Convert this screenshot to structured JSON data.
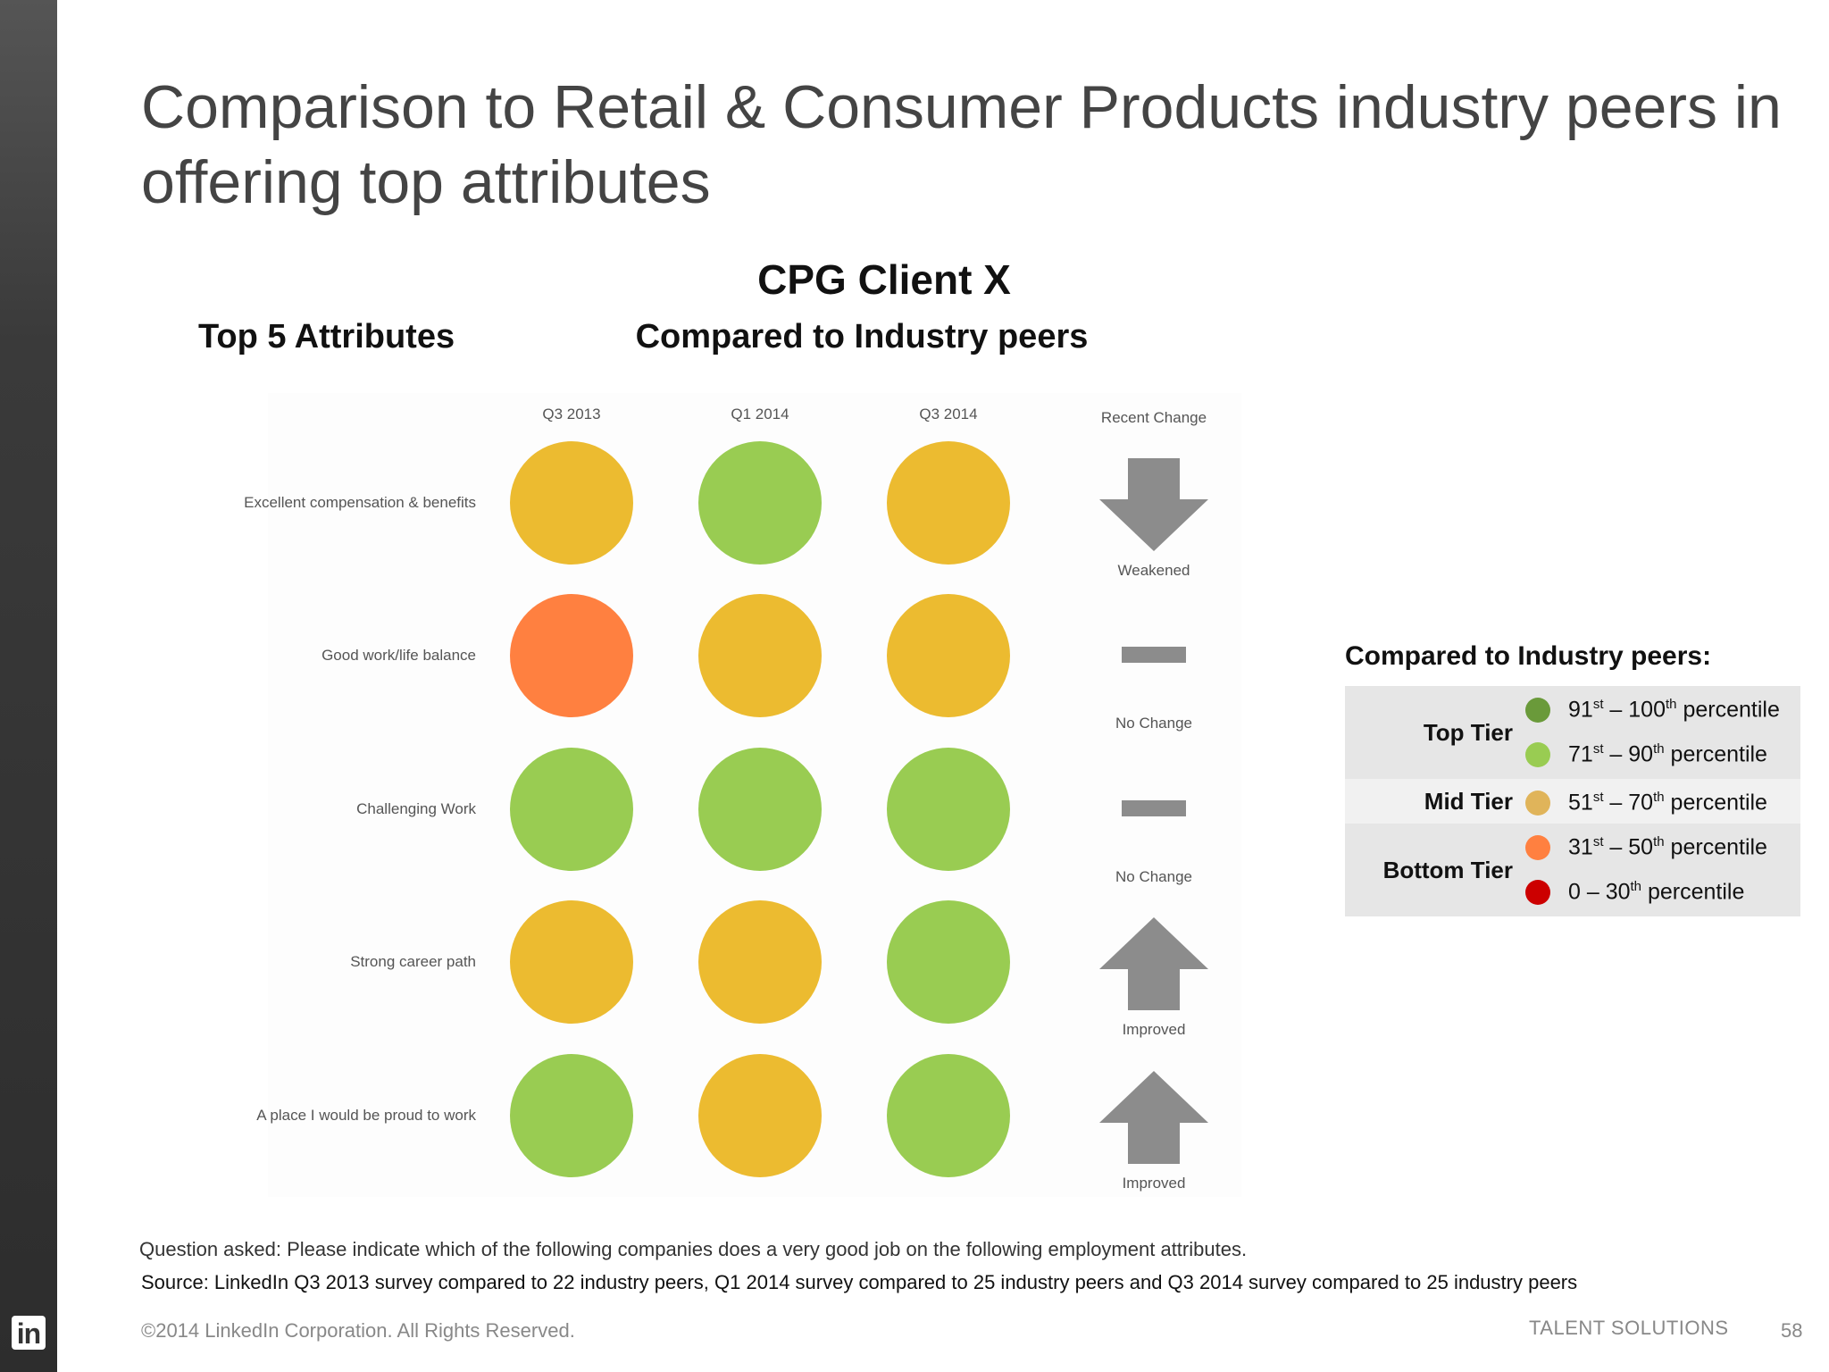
{
  "title": "Comparison to Retail & Consumer Products industry peers in offering top attributes",
  "client_name": "CPG Client X",
  "left_heading": "Top 5 Attributes",
  "right_heading": "Compared to Industry peers",
  "columns": [
    "Q3 2013",
    "Q1 2014",
    "Q3 2014",
    "Recent Change"
  ],
  "colors": {
    "dark_green": "#6a9a3a",
    "light_green": "#99cc52",
    "yellow": "#ecbb30",
    "orange": "#ff8040",
    "red": "#cc0000",
    "legend_dot_mid": "#e0b45a",
    "arrow_gray": "#8c8c8c"
  },
  "rows": [
    {
      "label": "Excellent compensation & benefits",
      "dots": [
        "yellow",
        "light_green",
        "yellow"
      ],
      "change": "down",
      "change_label": "Weakened"
    },
    {
      "label": "Good work/life balance",
      "dots": [
        "orange",
        "yellow",
        "yellow"
      ],
      "change": "none",
      "change_label": "No Change"
    },
    {
      "label": "Challenging Work",
      "dots": [
        "light_green",
        "light_green",
        "light_green"
      ],
      "change": "none",
      "change_label": "No Change"
    },
    {
      "label": "Strong career path",
      "dots": [
        "yellow",
        "yellow",
        "light_green"
      ],
      "change": "up",
      "change_label": "Improved"
    },
    {
      "label": "A place I would be proud to work",
      "dots": [
        "light_green",
        "yellow",
        "light_green"
      ],
      "change": "up",
      "change_label": "Improved"
    }
  ],
  "legend": {
    "title": "Compared to Industry peers:",
    "tiers": [
      {
        "name": "Top Tier",
        "items": [
          {
            "n1": "91",
            "s1": "st",
            "mid": " – 100",
            "s2": "th",
            "rest": " percentile",
            "color": "#6a9a3a"
          },
          {
            "n1": "71",
            "s1": "st",
            "mid": " – 90",
            "s2": "th",
            "rest": " percentile",
            "color": "#99cc52"
          }
        ]
      },
      {
        "name": "Mid Tier",
        "items": [
          {
            "n1": "51",
            "s1": "st",
            "mid": " – 70",
            "s2": "th",
            "rest": " percentile",
            "color": "#e0b45a"
          }
        ]
      },
      {
        "name": "Bottom Tier",
        "items": [
          {
            "n1": "31",
            "s1": "st",
            "mid": " – 50",
            "s2": "th",
            "rest": " percentile",
            "color": "#ff8040"
          },
          {
            "n1": "0",
            "s1": "",
            "mid": " – 30",
            "s2": "th",
            "rest": " percentile",
            "color": "#cc0000"
          }
        ]
      }
    ]
  },
  "question": "Question asked: Please indicate which of the following companies does a very good job on the following employment attributes.",
  "source": "Source: LinkedIn Q3 2013 survey compared to 22 industry peers, Q1 2014 survey compared to 25 industry peers and Q3 2014 survey compared to 25 industry peers",
  "copyright": "©2014 LinkedIn Corporation. All Rights Reserved.",
  "brand": "TALENT SOLUTIONS",
  "page_number": "58",
  "logo_text": "in"
}
